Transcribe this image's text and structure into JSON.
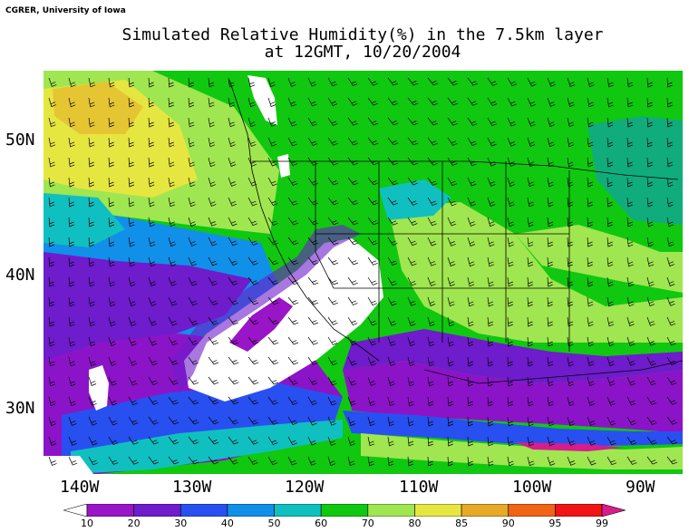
{
  "credit": "CGRER, University of Iowa",
  "title_line1": "Simulated Relative Humidity(%) in the 7.5km layer",
  "title_line2": "at 12GMT, 10/20/2004",
  "map": {
    "lat_labels": [
      "50N",
      "40N",
      "30N"
    ],
    "lon_labels": [
      "140W",
      "130W",
      "120W",
      "110W",
      "100W",
      "90W"
    ],
    "field": "relative humidity",
    "units": "%"
  },
  "colorbar": {
    "levels": [
      "10",
      "20",
      "30",
      "40",
      "50",
      "60",
      "70",
      "80",
      "85",
      "90",
      "95",
      "99"
    ],
    "colors": [
      "#ffffff",
      "#9a14c8",
      "#6e1ccc",
      "#2850f0",
      "#1090e8",
      "#10c0c0",
      "#10c810",
      "#a0e650",
      "#e6e640",
      "#e6aa28",
      "#f06414",
      "#f01414",
      "#d81c8c"
    ]
  },
  "palette": {
    "white": "#ffffff",
    "purple": "#8c14c8",
    "violet": "#6e1ccc",
    "blue": "#2850f0",
    "lightblue": "#1090e8",
    "teal": "#10c0c0",
    "green": "#10c810",
    "lightgreen": "#a0e650",
    "yellow": "#e6e640",
    "orange": "#e6aa28"
  }
}
